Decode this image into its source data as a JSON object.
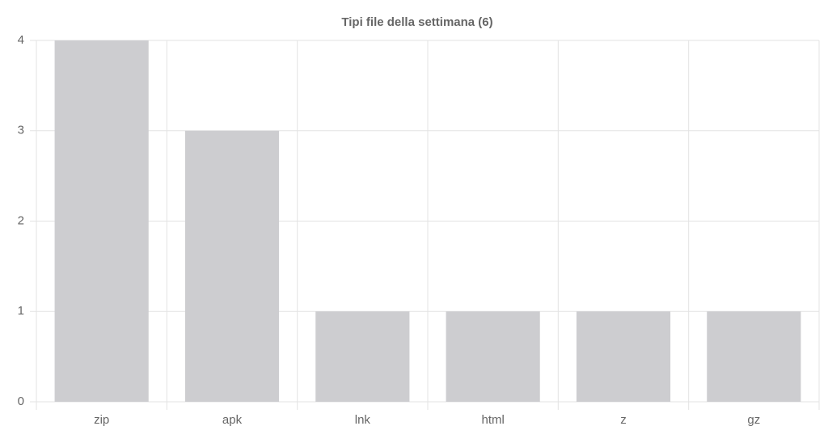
{
  "chart_data": {
    "type": "bar",
    "title": "Tipi file della settimana (6)",
    "categories": [
      "zip",
      "apk",
      "lnk",
      "html",
      "z",
      "gz"
    ],
    "values": [
      4,
      3,
      1,
      1,
      1,
      1
    ],
    "color": "#cdcdd0",
    "ylim": [
      0,
      4
    ],
    "yticks": [
      0,
      1,
      2,
      3,
      4
    ],
    "grid": true
  }
}
